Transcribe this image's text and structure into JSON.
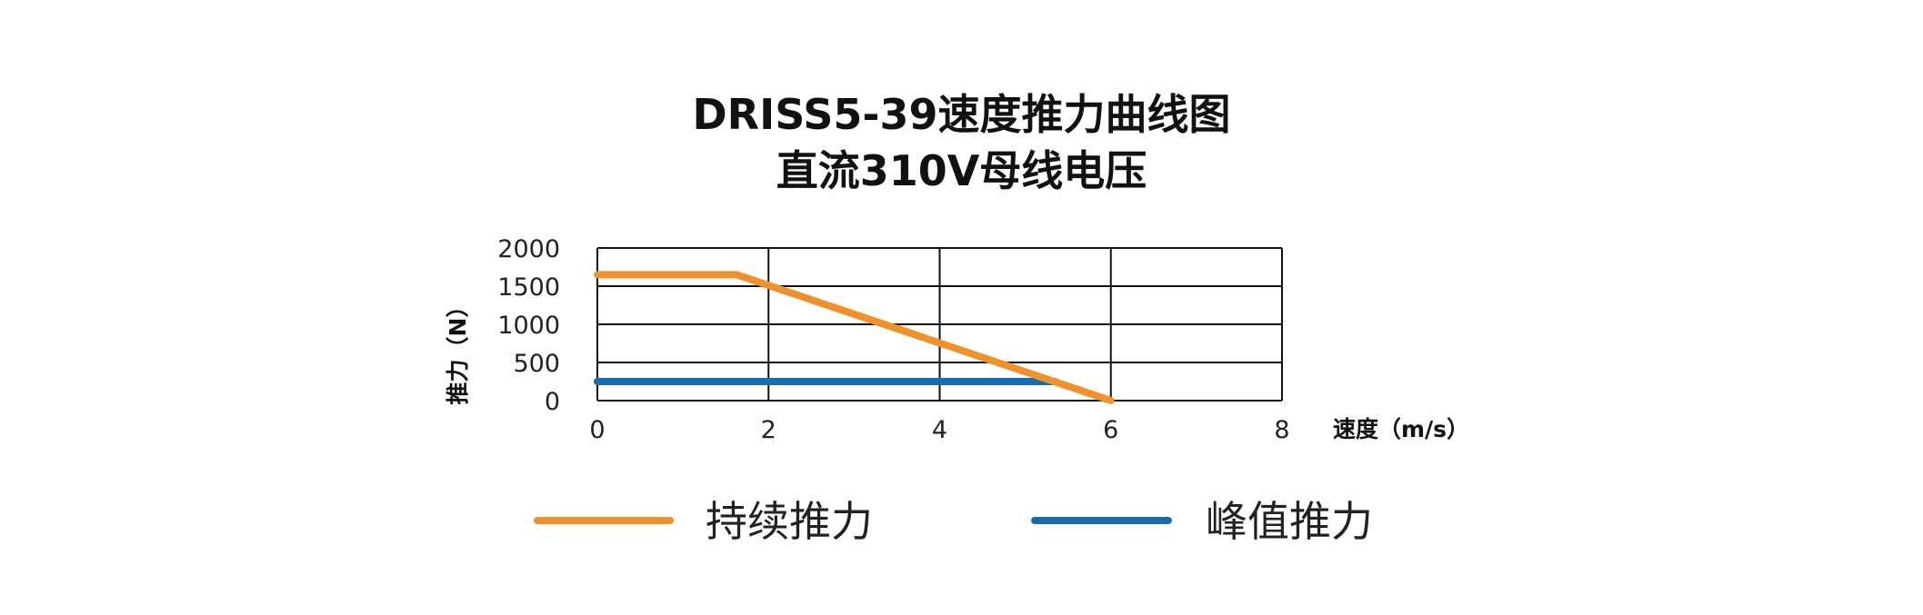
{
  "chart_data": {
    "type": "line",
    "title": "DRISS5-39速度推力曲线图",
    "subtitle": "直流310V母线电压",
    "xlabel": "速度（m/s）",
    "ylabel": "推力（N）",
    "xlim": [
      0,
      8
    ],
    "ylim": [
      0,
      2000
    ],
    "xticks": [
      "0",
      "2",
      "4",
      "6",
      "8"
    ],
    "yticks": [
      "2000",
      "1500",
      "1000",
      "500",
      "0"
    ],
    "grid": true,
    "legend_position": "bottom",
    "series": [
      {
        "name": "持续推力",
        "color": "#ef922b",
        "x": [
          0,
          1.63,
          6
        ],
        "y": [
          1650,
          1650,
          0
        ]
      },
      {
        "name": "峰值推力",
        "color": "#176cb0",
        "x": [
          0,
          5.35
        ],
        "y": [
          250,
          250
        ]
      }
    ]
  }
}
